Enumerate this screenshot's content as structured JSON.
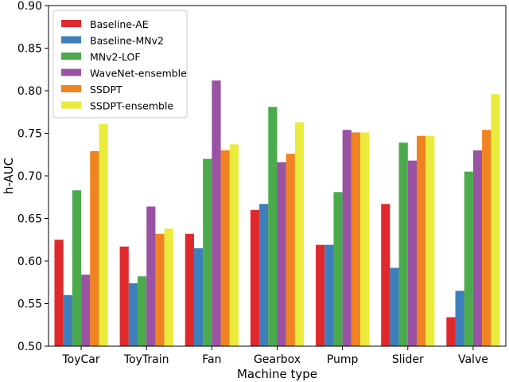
{
  "chart_data": {
    "type": "bar",
    "title": "",
    "xlabel": "Machine type",
    "ylabel": "h-AUC",
    "ylim": [
      0.5,
      0.9
    ],
    "yticks": [
      "0.50",
      "0.55",
      "0.60",
      "0.65",
      "0.70",
      "0.75",
      "0.80",
      "0.85",
      "0.90"
    ],
    "categories": [
      "ToyCar",
      "ToyTrain",
      "Fan",
      "Gearbox",
      "Pump",
      "Slider",
      "Valve"
    ],
    "legend_position": "top-left",
    "series": [
      {
        "name": "Baseline-AE",
        "color": "#e0292d",
        "values": [
          0.625,
          0.617,
          0.632,
          0.66,
          0.619,
          0.667,
          0.534
        ]
      },
      {
        "name": "Baseline-MNv2",
        "color": "#3c7fba",
        "values": [
          0.56,
          0.574,
          0.615,
          0.667,
          0.619,
          0.592,
          0.565
        ]
      },
      {
        "name": "MNv2-LOF",
        "color": "#4aaa4c",
        "values": [
          0.683,
          0.582,
          0.72,
          0.781,
          0.681,
          0.739,
          0.705
        ]
      },
      {
        "name": "WaveNet-ensemble",
        "color": "#9a52a3",
        "values": [
          0.584,
          0.664,
          0.812,
          0.716,
          0.754,
          0.718,
          0.73
        ]
      },
      {
        "name": "SSDPT",
        "color": "#f0821f",
        "values": [
          0.729,
          0.632,
          0.73,
          0.726,
          0.751,
          0.747,
          0.754
        ]
      },
      {
        "name": "SSDPT-ensemble",
        "color": "#ebeb3c",
        "values": [
          0.761,
          0.638,
          0.737,
          0.763,
          0.751,
          0.747,
          0.796
        ]
      }
    ]
  }
}
